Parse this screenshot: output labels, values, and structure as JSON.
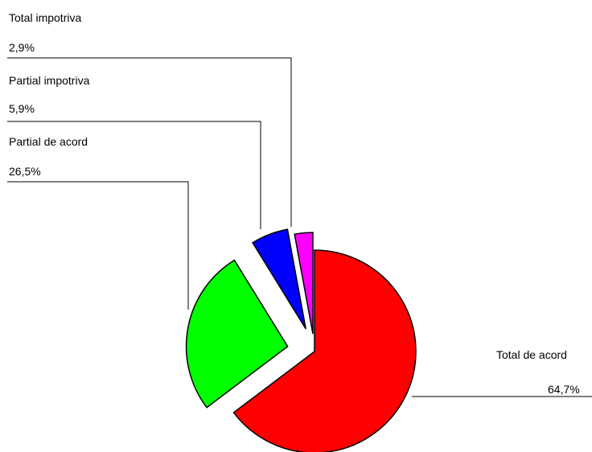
{
  "chart_data": {
    "type": "pie",
    "title": "",
    "slices": [
      {
        "label": "Total de acord",
        "value": 64.7,
        "value_label": "64,7%",
        "color": "#ff0000"
      },
      {
        "label": "Partial de acord",
        "value": 26.5,
        "value_label": "26,5%",
        "color": "#00ff00"
      },
      {
        "label": "Partial impotriva",
        "value": 5.9,
        "value_label": "5,9%",
        "color": "#0000ff"
      },
      {
        "label": "Total impotriva",
        "value": 2.9,
        "value_label": "2,9%",
        "color": "#ff00ff"
      }
    ],
    "exploded": true,
    "legend": "none"
  }
}
